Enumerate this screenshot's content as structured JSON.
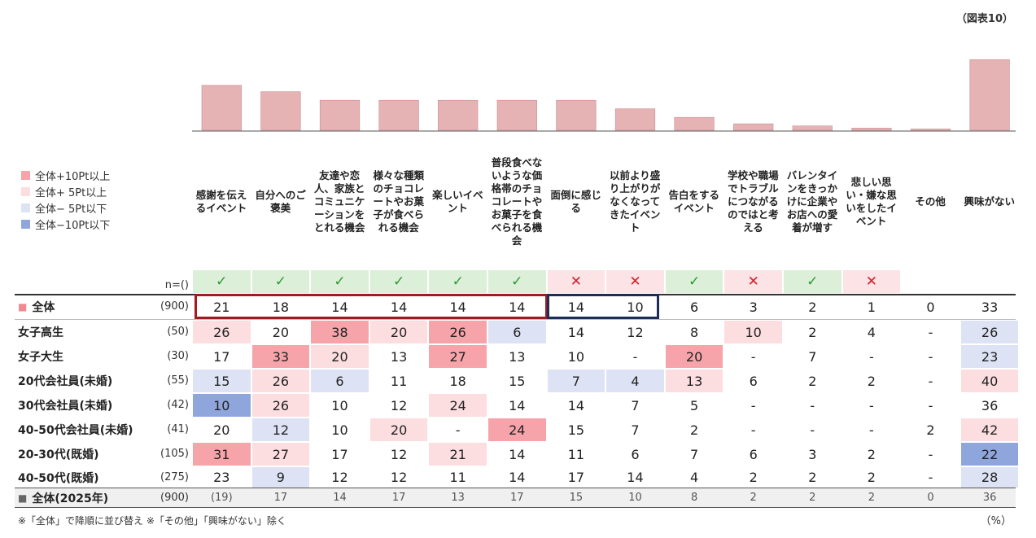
{
  "figure_no": "（図表10）",
  "legend": [
    {
      "label": "全体+10Pt以上",
      "color": "#f6a4aa"
    },
    {
      "label": "全体+ 5Pt以上",
      "color": "#fcdde0"
    },
    {
      "label": "全体− 5Pt以下",
      "color": "#dde3f4"
    },
    {
      "label": "全体−10Pt以下",
      "color": "#8fa6dd"
    }
  ],
  "n_header": "n=()",
  "marks": [
    "✓",
    "✓",
    "✓",
    "✓",
    "✓",
    "✓",
    "✕",
    "✕",
    "✓",
    "✕",
    "✓",
    "✕",
    "",
    ""
  ],
  "rows": [
    {
      "label": "全体",
      "n": "(900)",
      "values": [
        "21",
        "18",
        "14",
        "14",
        "14",
        "14",
        "14",
        "10",
        "6",
        "3",
        "2",
        "1",
        "0",
        "33"
      ],
      "hl": [
        0,
        0,
        0,
        0,
        0,
        0,
        0,
        0,
        0,
        0,
        0,
        0,
        0,
        0
      ]
    },
    {
      "label": "女子高生",
      "n": "(50)",
      "values": [
        "26",
        "20",
        "38",
        "20",
        "26",
        "6",
        "14",
        "12",
        "8",
        "10",
        "2",
        "4",
        "-",
        "26"
      ],
      "hl": [
        2,
        0,
        1,
        2,
        1,
        3,
        0,
        0,
        0,
        2,
        0,
        0,
        0,
        3
      ]
    },
    {
      "label": "女子大生",
      "n": "(30)",
      "values": [
        "17",
        "33",
        "20",
        "13",
        "27",
        "13",
        "10",
        "-",
        "20",
        "-",
        "7",
        "-",
        "-",
        "23"
      ],
      "hl": [
        0,
        1,
        2,
        0,
        1,
        0,
        0,
        0,
        1,
        0,
        0,
        0,
        0,
        3
      ]
    },
    {
      "label": "20代会社員(未婚)",
      "n": "(55)",
      "values": [
        "15",
        "26",
        "6",
        "11",
        "18",
        "15",
        "7",
        "4",
        "13",
        "6",
        "2",
        "2",
        "-",
        "40"
      ],
      "hl": [
        3,
        2,
        3,
        0,
        0,
        0,
        3,
        3,
        2,
        0,
        0,
        0,
        0,
        2
      ]
    },
    {
      "label": "30代会社員(未婚)",
      "n": "(42)",
      "values": [
        "10",
        "26",
        "10",
        "12",
        "24",
        "14",
        "14",
        "7",
        "5",
        "-",
        "-",
        "-",
        "-",
        "36"
      ],
      "hl": [
        4,
        2,
        0,
        0,
        2,
        0,
        0,
        0,
        0,
        0,
        0,
        0,
        0,
        0
      ]
    },
    {
      "label": "40-50代会社員(未婚)",
      "n": "(41)",
      "values": [
        "20",
        "12",
        "10",
        "20",
        "-",
        "24",
        "15",
        "7",
        "2",
        "-",
        "-",
        "-",
        "2",
        "42"
      ],
      "hl": [
        0,
        3,
        0,
        2,
        0,
        1,
        0,
        0,
        0,
        0,
        0,
        0,
        0,
        2
      ]
    },
    {
      "label": "20-30代(既婚)",
      "n": "(105)",
      "values": [
        "31",
        "27",
        "17",
        "12",
        "21",
        "14",
        "11",
        "6",
        "7",
        "6",
        "3",
        "2",
        "-",
        "22"
      ],
      "hl": [
        1,
        2,
        0,
        0,
        2,
        0,
        0,
        0,
        0,
        0,
        0,
        0,
        0,
        4
      ]
    },
    {
      "label": "40-50代(既婚)",
      "n": "(275)",
      "values": [
        "23",
        "9",
        "12",
        "12",
        "11",
        "14",
        "17",
        "14",
        "4",
        "2",
        "2",
        "2",
        "-",
        "28"
      ],
      "hl": [
        0,
        3,
        0,
        0,
        0,
        0,
        0,
        0,
        0,
        0,
        0,
        0,
        0,
        3
      ]
    },
    {
      "label": "全体(2025年)",
      "n": "(900)",
      "values": [
        "(19)",
        "17",
        "14",
        "17",
        "13",
        "17",
        "15",
        "10",
        "8",
        "2",
        "2",
        "2",
        "0",
        "36"
      ],
      "hl": [
        0,
        0,
        0,
        0,
        0,
        0,
        0,
        0,
        0,
        0,
        0,
        0,
        0,
        0
      ]
    }
  ],
  "note": "※「全体」で降順に並び替え ※「その他」「興味がない」除く",
  "unit": "（%）",
  "chart_data": {
    "type": "bar",
    "categories": [
      "感謝を伝えるイベント",
      "自分へのご褒美",
      "友達や恋人、家族とコミュニケーションをとれる機会",
      "様々な種類のチョコレートやお菓子が食べられる機会",
      "楽しいイベント",
      "普段食べないような価格帯のチョコレートやお菓子を食べられる機会",
      "面倒に感じる",
      "以前より盛り上がりがなくなってきたイベント",
      "告白をするイベント",
      "学校や職場でトラブルにつながるのではと考える",
      "バレンタインをきっかけに企業やお店への愛着が増す",
      "悲しい思い・嫌な思いをしたイベント",
      "その他",
      "興味がない"
    ],
    "series": [
      {
        "name": "全体",
        "values": [
          21,
          18,
          14,
          14,
          14,
          14,
          14,
          10,
          6,
          3,
          2,
          1,
          0,
          33
        ]
      }
    ],
    "ylim": [
      0,
      35
    ],
    "bar_color": "#e6b3b5"
  }
}
